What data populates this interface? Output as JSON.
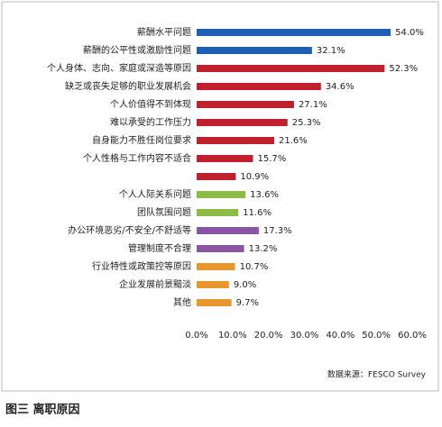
{
  "chart_data": {
    "type": "hbar",
    "categories": [
      "薪酬水平问题",
      "薪酬的公平性或激励性问题",
      "个人身体、志向、家庭或深造等原因",
      "缺乏或丧失足够的职业发展机会",
      "个人价值得不到体现",
      "难以承受的工作压力",
      "自身能力不胜任岗位要求",
      "个人性格与工作内容不适合",
      null,
      "个人人际关系问题",
      "团队氛围问题",
      "办公环境恶劣/不安全/不舒适等",
      "管理制度不合理",
      "行业特性或政策控等原因",
      "企业发展前景黯淡",
      "其他"
    ],
    "values": [
      54.0,
      32.1,
      52.3,
      34.6,
      27.1,
      25.3,
      21.6,
      15.7,
      10.9,
      13.6,
      11.6,
      17.3,
      13.2,
      10.7,
      9.0,
      9.7
    ],
    "value_labels": [
      "54.0%",
      "32.1%",
      "52.3%",
      "34.6%",
      "27.1%",
      "25.3%",
      "21.6%",
      "15.7%",
      "10.9%",
      "13.6%",
      "11.6%",
      "17.3%",
      "13.2%",
      "10.7%",
      "9.0%",
      "9.7%"
    ],
    "colors": [
      "#1f5fb4",
      "#1f5fb4",
      "#c0202e",
      "#c0202e",
      "#c0202e",
      "#c0202e",
      "#c0202e",
      "#c0202e",
      "#c0202e",
      "#8dbb45",
      "#8dbb45",
      "#8a56a4",
      "#8a56a4",
      "#e8962e",
      "#e8962e",
      "#e8962e"
    ],
    "xlim": [
      0,
      60
    ],
    "xticks": [
      {
        "value": 0,
        "label": "0.0%"
      },
      {
        "value": 10,
        "label": "10.0%"
      },
      {
        "value": 20,
        "label": "20.0%"
      },
      {
        "value": 30,
        "label": "30.0%"
      },
      {
        "value": 40,
        "label": "40.0%"
      },
      {
        "value": 50,
        "label": "50.0%"
      },
      {
        "value": 60,
        "label": "60.0%"
      }
    ],
    "source": "数据来源：FESCO Survey",
    "caption": "图三 离职原因"
  }
}
